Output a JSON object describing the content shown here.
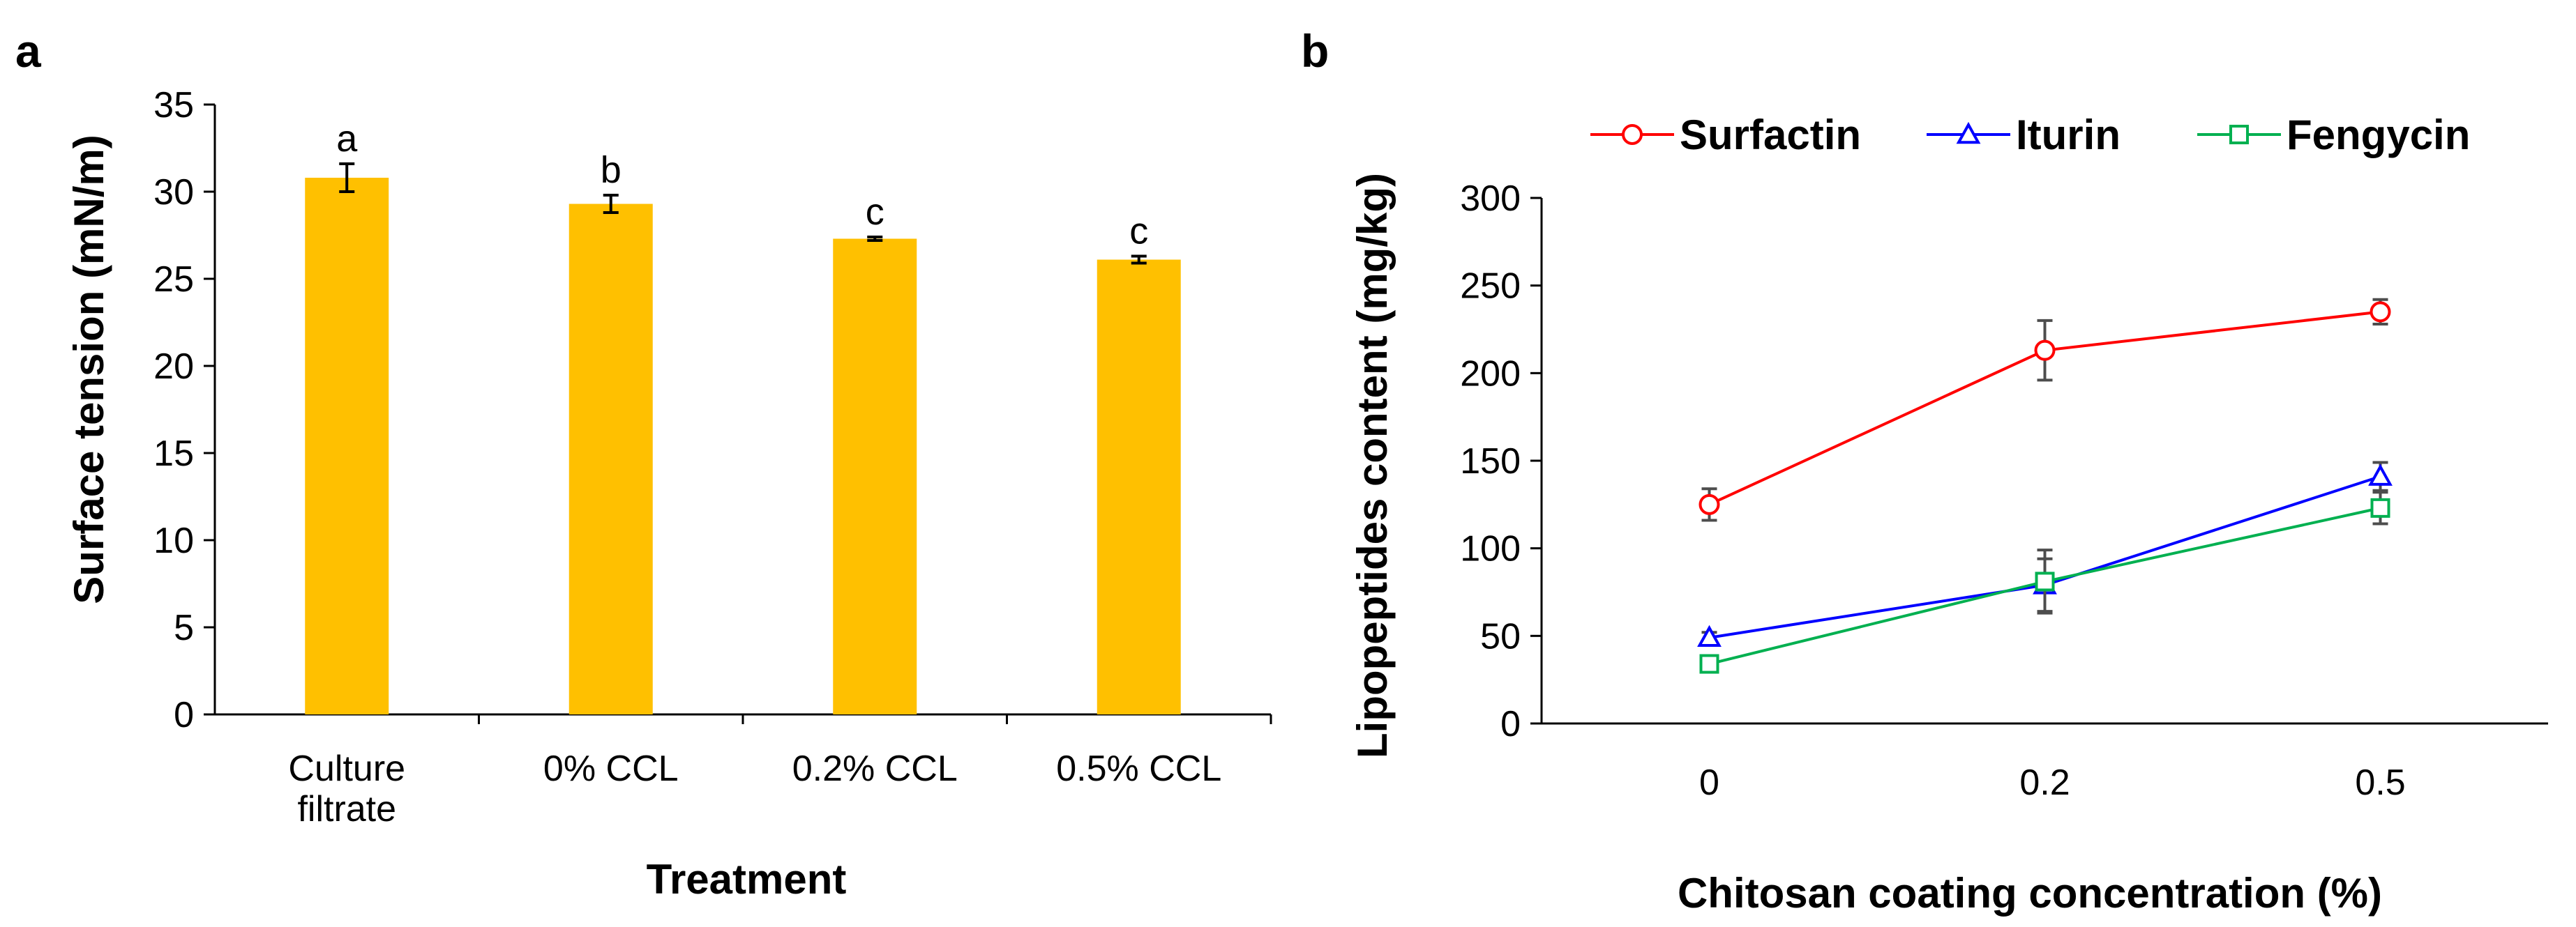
{
  "chart_data": [
    {
      "panel": "a",
      "type": "bar",
      "title": "",
      "xlabel": "Treatment",
      "ylabel": "Surface tension (mN/m)",
      "ylim": [
        0,
        35
      ],
      "yticks": [
        0,
        5,
        10,
        15,
        20,
        25,
        30,
        35
      ],
      "ytick_labels": [
        "0",
        "5",
        "10",
        "15",
        "20",
        "25",
        "30",
        "35"
      ],
      "categories": [
        [
          "Culture",
          "filtrate"
        ],
        [
          "0% CCL"
        ],
        [
          "0.2% CCL"
        ],
        [
          "0.5% CCL"
        ]
      ],
      "values": [
        30.8,
        29.3,
        27.3,
        26.1
      ],
      "errors": [
        0.8,
        0.5,
        0.1,
        0.2
      ],
      "annotations": [
        "a",
        "b",
        "c",
        "c"
      ],
      "bar_color": "#ffc000",
      "grid": false
    },
    {
      "panel": "b",
      "type": "line",
      "title": "",
      "xlabel": "Chitosan coating concentration (%)",
      "ylabel": "Lipopeptides content (mg/kg)",
      "ylim": [
        0,
        300
      ],
      "yticks": [
        0,
        50,
        100,
        150,
        200,
        250,
        300
      ],
      "ytick_labels": [
        "0",
        "50",
        "100",
        "150",
        "200",
        "250",
        "300"
      ],
      "x": [
        "0",
        "0.2",
        "0.5"
      ],
      "legend_position": "top",
      "grid": false,
      "series": [
        {
          "name": "Surfactin",
          "values": [
            125,
            213,
            235
          ],
          "errors": [
            9,
            17,
            7
          ],
          "color": "#ff0000",
          "marker": "circle"
        },
        {
          "name": "Iturin",
          "values": [
            49,
            79,
            141
          ],
          "errors": [
            3,
            15,
            8
          ],
          "color": "#0000ff",
          "marker": "triangle"
        },
        {
          "name": "Fengycin",
          "values": [
            34,
            81,
            123
          ],
          "errors": [
            3,
            18,
            9
          ],
          "color": "#00b050",
          "marker": "square"
        }
      ]
    }
  ]
}
